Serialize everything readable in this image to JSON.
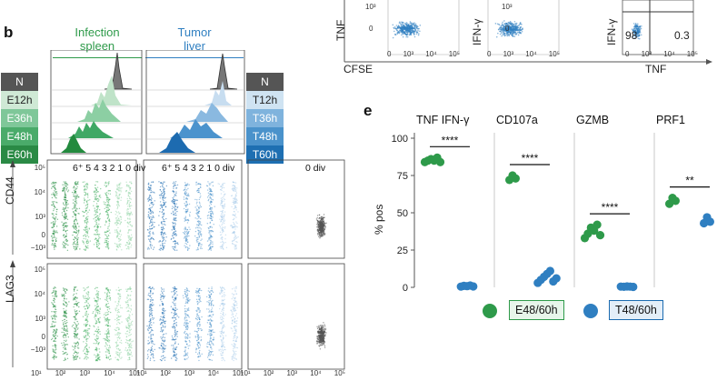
{
  "panel_b": {
    "letter": "b",
    "header_infection": "Infection\nspleen",
    "header_tumor": "Tumor\nliver",
    "left_conditions": [
      "N",
      "E12h",
      "E36h",
      "E48h",
      "E60h"
    ],
    "right_conditions": [
      "N",
      "T12h",
      "T36h",
      "T48h",
      "T60h"
    ],
    "division_label_green": "6⁺ 5 4 3 2 1 0  div",
    "division_label_blue": "6⁺ 5 4 3 2 1 0  div",
    "division_label_naive": "0 div",
    "y_axis_top": "CD44",
    "y_axis_bottom": "LAG3",
    "y_ticks": [
      "10⁵",
      "10⁴",
      "10³",
      "0",
      "−10³"
    ],
    "x_ticks": [
      "10¹",
      "10²",
      "10³",
      "10⁴",
      "10⁵"
    ]
  },
  "panel_top_flow": {
    "y_label_1": "TNF",
    "y_label_2": "IFN-γ",
    "y_label_3": "IFN-γ",
    "x_label_1": "CFSE",
    "x_label_2": "TNF",
    "y_ticks": [
      "10³",
      "0"
    ],
    "x_ticks_a": [
      "0",
      "10³",
      "10⁴",
      "10⁵"
    ],
    "x_ticks_b": [
      "0",
      "10³",
      "10⁴",
      "10⁵"
    ],
    "x_ticks_c": [
      "0",
      "10³",
      "10⁴",
      "10⁵"
    ],
    "quadrant_ll": "98",
    "quadrant_lr": "0.3"
  },
  "panel_e": {
    "letter": "e",
    "y_axis_label": "% pos",
    "legend_green": "E48/60h",
    "legend_blue": "T48/60h",
    "colors": {
      "green": "#2e9a4a",
      "blue": "#2f7fc1",
      "naive": "#555555"
    },
    "chart_data": {
      "type": "scatter",
      "ylabel": "% pos",
      "ylim": [
        0,
        100
      ],
      "yticks": [
        0,
        25,
        50,
        75,
        100
      ],
      "groups": [
        {
          "title": "TNF IFN-γ",
          "significance": "****",
          "series": [
            {
              "name": "E48/60h",
              "values": [
                84,
                85,
                86,
                85,
                87,
                84
              ]
            },
            {
              "name": "T48/60h",
              "values": [
                0.5,
                1,
                0.8,
                1.2,
                0.6
              ]
            }
          ]
        },
        {
          "title": "CD107a",
          "significance": "****",
          "series": [
            {
              "name": "E48/60h",
              "values": [
                72,
                75,
                73
              ]
            },
            {
              "name": "T48/60h",
              "values": [
                3,
                5,
                7,
                9,
                11,
                4,
                6
              ]
            }
          ]
        },
        {
          "title": "GZMB",
          "significance": "****",
          "series": [
            {
              "name": "E48/60h",
              "values": [
                33,
                36,
                40,
                38,
                42,
                35
              ]
            },
            {
              "name": "T48/60h",
              "values": [
                0.5,
                0.4,
                0.6,
                0.5,
                0.3
              ]
            }
          ]
        },
        {
          "title": "PRF1",
          "significance": "**",
          "series": [
            {
              "name": "E48/60h",
              "values": [
                56,
                60,
                58
              ]
            },
            {
              "name": "T48/60h",
              "values": [
                43,
                47,
                44
              ]
            }
          ]
        }
      ]
    }
  }
}
